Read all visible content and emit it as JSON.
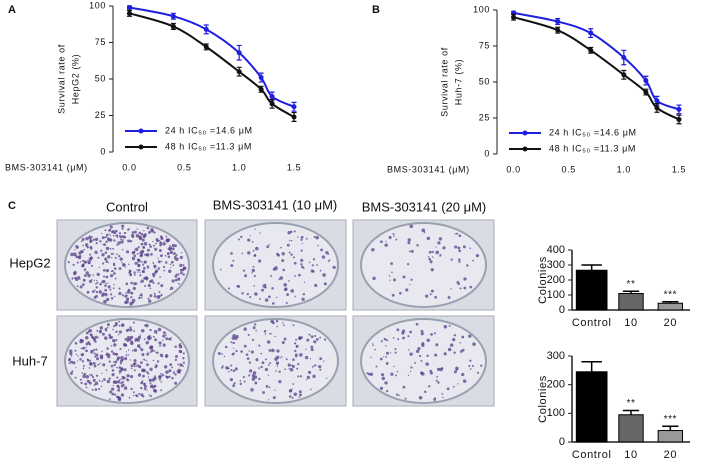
{
  "panel_labels": [
    "A",
    "B",
    "C"
  ],
  "colony_images": {
    "columns": [
      "Control",
      "BMS-303141 (10 μM)",
      "BMS-303141 (20 μM)"
    ],
    "rows": [
      "HepG2",
      "Huh-7"
    ]
  },
  "chart_data": [
    {
      "type": "line",
      "ylabel": [
        "Survival rate of",
        "HepG2 (%)"
      ],
      "xlabel": "BMS-303141 (μM)",
      "x": [
        0,
        0.4,
        0.7,
        1,
        1.2,
        1.3,
        1.5
      ],
      "xlim": [
        -0.15,
        1.6
      ],
      "xticks": [
        {
          "value": 0,
          "label": "0.0"
        },
        0.5,
        {
          "value": 1,
          "label": "1.0"
        },
        1.5
      ],
      "ylim": [
        0,
        100
      ],
      "yticks": [
        0,
        25,
        50,
        75,
        100
      ],
      "legend": "lower left",
      "series": [
        {
          "name": "24 h  IC₅₀ =14.6 μM",
          "color": "#1f1fe0",
          "values": [
            99,
            93,
            84,
            68,
            51,
            38,
            31
          ],
          "errors": [
            1,
            2,
            3,
            5,
            3,
            3,
            3
          ]
        },
        {
          "name": "48 h  IC₅₀ =11.3 μM",
          "color": "#111111",
          "values": [
            95,
            86,
            72,
            55,
            43,
            33,
            24
          ],
          "errors": [
            2,
            2,
            2,
            3,
            2,
            3,
            3
          ]
        }
      ]
    },
    {
      "type": "line",
      "ylabel": [
        "Survival rate of",
        "Huh-7 (%)"
      ],
      "xlabel": "BMS-303141 (μM)",
      "x": [
        0,
        0.4,
        0.7,
        1,
        1.2,
        1.3,
        1.5
      ],
      "xlim": [
        -0.15,
        1.6
      ],
      "xticks": [
        {
          "value": 0,
          "label": "0.0"
        },
        0.5,
        {
          "value": 1,
          "label": "1.0"
        },
        1.5
      ],
      "ylim": [
        0,
        100
      ],
      "yticks": [
        0,
        25,
        50,
        75,
        100
      ],
      "legend": "lower left",
      "series": [
        {
          "name": "24 h  IC₅₀ =14.6 μM",
          "color": "#1f1fe0",
          "values": [
            98,
            92,
            84,
            67,
            51,
            37,
            31
          ],
          "errors": [
            1,
            2,
            3,
            5,
            3,
            3,
            3
          ]
        },
        {
          "name": "48 h  IC₅₀ =11.3 μM",
          "color": "#111111",
          "values": [
            95,
            86,
            72,
            55,
            43,
            32,
            24
          ],
          "errors": [
            2,
            2,
            2,
            3,
            2,
            3,
            3
          ]
        }
      ]
    },
    {
      "type": "bar",
      "ylabel": "Colonies",
      "categories": [
        "Control",
        "10",
        "20"
      ],
      "values": [
        265,
        110,
        45
      ],
      "errors": [
        35,
        15,
        10
      ],
      "colors": [
        "#000000",
        "#666666",
        "#999999"
      ],
      "significance": [
        null,
        "**",
        "***"
      ],
      "ylim": [
        0,
        400
      ],
      "yticks": [
        0,
        100,
        200,
        300,
        400
      ]
    },
    {
      "type": "bar",
      "ylabel": "Colonies",
      "categories": [
        "Control",
        "10",
        "20"
      ],
      "values": [
        245,
        95,
        40
      ],
      "errors": [
        35,
        15,
        15
      ],
      "colors": [
        "#000000",
        "#666666",
        "#999999"
      ],
      "significance": [
        null,
        "**",
        "***"
      ],
      "ylim": [
        0,
        300
      ],
      "yticks": [
        0,
        100,
        200,
        300
      ]
    }
  ]
}
